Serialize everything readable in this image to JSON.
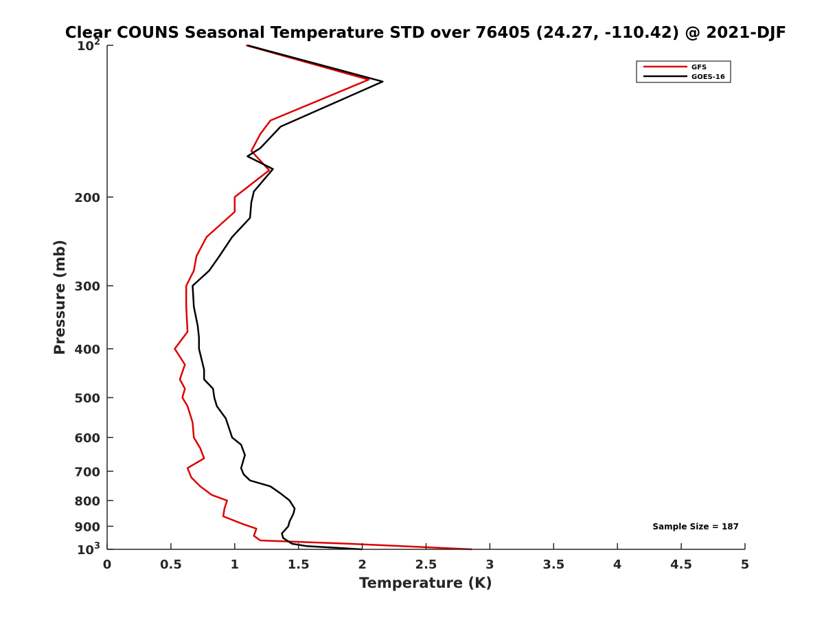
{
  "chart_data": {
    "type": "line",
    "title": "Clear COUNS Seasonal Temperature STD over 76405 (24.27, -110.42) @ 2021-DJF",
    "xlabel": "Temperature (K)",
    "ylabel": "Pressure (mb)",
    "xlim": [
      0,
      5
    ],
    "ylim": [
      100,
      1000
    ],
    "y_scale": "log",
    "y_reversed": true,
    "grid": false,
    "legend_position": "top-right",
    "x_ticks": [
      {
        "value": 0,
        "label": "0"
      },
      {
        "value": 0.5,
        "label": "0.5"
      },
      {
        "value": 1,
        "label": "1"
      },
      {
        "value": 1.5,
        "label": "1.5"
      },
      {
        "value": 2,
        "label": "2"
      },
      {
        "value": 2.5,
        "label": "2.5"
      },
      {
        "value": 3,
        "label": "3"
      },
      {
        "value": 3.5,
        "label": "3.5"
      },
      {
        "value": 4,
        "label": "4"
      },
      {
        "value": 4.5,
        "label": "4.5"
      },
      {
        "value": 5,
        "label": "5"
      }
    ],
    "y_ticks": [
      {
        "value": 100,
        "base": "10",
        "exp": "2"
      },
      {
        "value": 200,
        "label": "200"
      },
      {
        "value": 300,
        "label": "300"
      },
      {
        "value": 400,
        "label": "400"
      },
      {
        "value": 500,
        "label": "500"
      },
      {
        "value": 600,
        "label": "600"
      },
      {
        "value": 700,
        "label": "700"
      },
      {
        "value": 800,
        "label": "800"
      },
      {
        "value": 900,
        "label": "900"
      },
      {
        "value": 1000,
        "base": "10",
        "exp": "3"
      }
    ],
    "annotation": "Sample Size = 187",
    "series": [
      {
        "name": "GFS",
        "color": "#dd0000",
        "points": [
          [
            1.09,
            100
          ],
          [
            2.05,
            117
          ],
          [
            1.28,
            141
          ],
          [
            1.2,
            150
          ],
          [
            1.13,
            162
          ],
          [
            1.27,
            177
          ],
          [
            1.0,
            200
          ],
          [
            1.0,
            214
          ],
          [
            0.78,
            240
          ],
          [
            0.7,
            262
          ],
          [
            0.68,
            280
          ],
          [
            0.62,
            300
          ],
          [
            0.62,
            330
          ],
          [
            0.63,
            370
          ],
          [
            0.53,
            400
          ],
          [
            0.61,
            430
          ],
          [
            0.57,
            460
          ],
          [
            0.61,
            480
          ],
          [
            0.59,
            500
          ],
          [
            0.63,
            520
          ],
          [
            0.67,
            560
          ],
          [
            0.68,
            600
          ],
          [
            0.73,
            630
          ],
          [
            0.76,
            660
          ],
          [
            0.63,
            690
          ],
          [
            0.66,
            720
          ],
          [
            0.73,
            750
          ],
          [
            0.82,
            780
          ],
          [
            0.94,
            800
          ],
          [
            0.92,
            830
          ],
          [
            0.91,
            860
          ],
          [
            1.06,
            890
          ],
          [
            1.17,
            910
          ],
          [
            1.15,
            940
          ],
          [
            1.2,
            960
          ],
          [
            1.9,
            975
          ],
          [
            2.86,
            1000
          ]
        ]
      },
      {
        "name": "GOES-16",
        "color": "#000000",
        "points": [
          [
            1.1,
            100
          ],
          [
            2.16,
            118
          ],
          [
            1.36,
            145
          ],
          [
            1.2,
            160
          ],
          [
            1.1,
            166
          ],
          [
            1.3,
            176
          ],
          [
            1.15,
            195
          ],
          [
            1.13,
            205
          ],
          [
            1.12,
            220
          ],
          [
            0.98,
            240
          ],
          [
            0.88,
            262
          ],
          [
            0.8,
            280
          ],
          [
            0.67,
            300
          ],
          [
            0.68,
            330
          ],
          [
            0.71,
            360
          ],
          [
            0.72,
            380
          ],
          [
            0.72,
            400
          ],
          [
            0.76,
            440
          ],
          [
            0.76,
            460
          ],
          [
            0.83,
            480
          ],
          [
            0.84,
            500
          ],
          [
            0.86,
            520
          ],
          [
            0.93,
            550
          ],
          [
            0.98,
            600
          ],
          [
            1.05,
            620
          ],
          [
            1.08,
            650
          ],
          [
            1.05,
            690
          ],
          [
            1.07,
            710
          ],
          [
            1.12,
            730
          ],
          [
            1.28,
            750
          ],
          [
            1.36,
            775
          ],
          [
            1.43,
            800
          ],
          [
            1.47,
            830
          ],
          [
            1.46,
            850
          ],
          [
            1.43,
            880
          ],
          [
            1.42,
            900
          ],
          [
            1.37,
            930
          ],
          [
            1.38,
            950
          ],
          [
            1.45,
            975
          ],
          [
            1.56,
            985
          ],
          [
            2.0,
            1000
          ]
        ]
      }
    ]
  }
}
